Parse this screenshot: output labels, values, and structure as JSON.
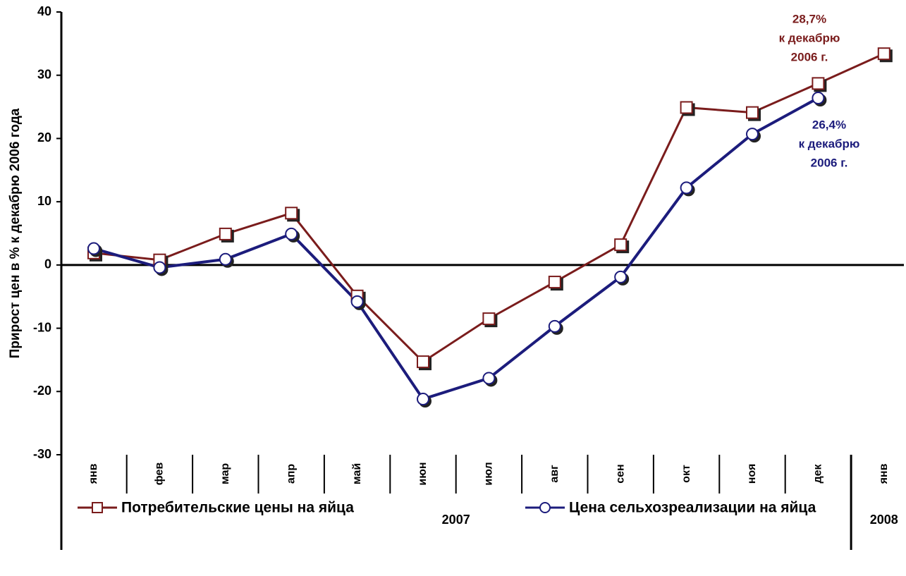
{
  "chart_data": {
    "type": "line",
    "y_label": "Прирост цен в % к декабрю 2006 года",
    "categories": [
      "янв",
      "фев",
      "мар",
      "апр",
      "май",
      "июн",
      "июл",
      "авг",
      "сен",
      "окт",
      "ноя",
      "дек",
      "янв"
    ],
    "x_groups": [
      {
        "label": "2007",
        "count": 12
      },
      {
        "label": "2008",
        "count": 1
      }
    ],
    "series": [
      {
        "name": "Потребительские цены на яйца",
        "color": "#7a1c1c",
        "marker": "square",
        "values": [
          1.9,
          0.8,
          4.9,
          8.2,
          -4.9,
          -15.3,
          -8.5,
          -2.7,
          3.2,
          24.9,
          24.1,
          28.7,
          33.4
        ]
      },
      {
        "name": "Цена сельхозреализации на яйца",
        "color": "#1c1c7c",
        "marker": "circle",
        "values": [
          2.6,
          -0.4,
          0.9,
          4.9,
          -5.8,
          -21.2,
          -17.9,
          -9.7,
          -1.9,
          12.2,
          20.7,
          26.4,
          null
        ]
      }
    ],
    "annotations": [
      {
        "lines": [
          "28,7%",
          "к декабрю",
          "2006 г."
        ],
        "color": "#7a1c1c"
      },
      {
        "lines": [
          "26,4%",
          "к декабрю",
          "2006 г."
        ],
        "color": "#1c1c7c"
      }
    ],
    "ylim": [
      -30,
      40
    ],
    "yticks": [
      -30,
      -20,
      -10,
      0,
      10,
      20,
      30,
      40
    ],
    "grid": false
  }
}
